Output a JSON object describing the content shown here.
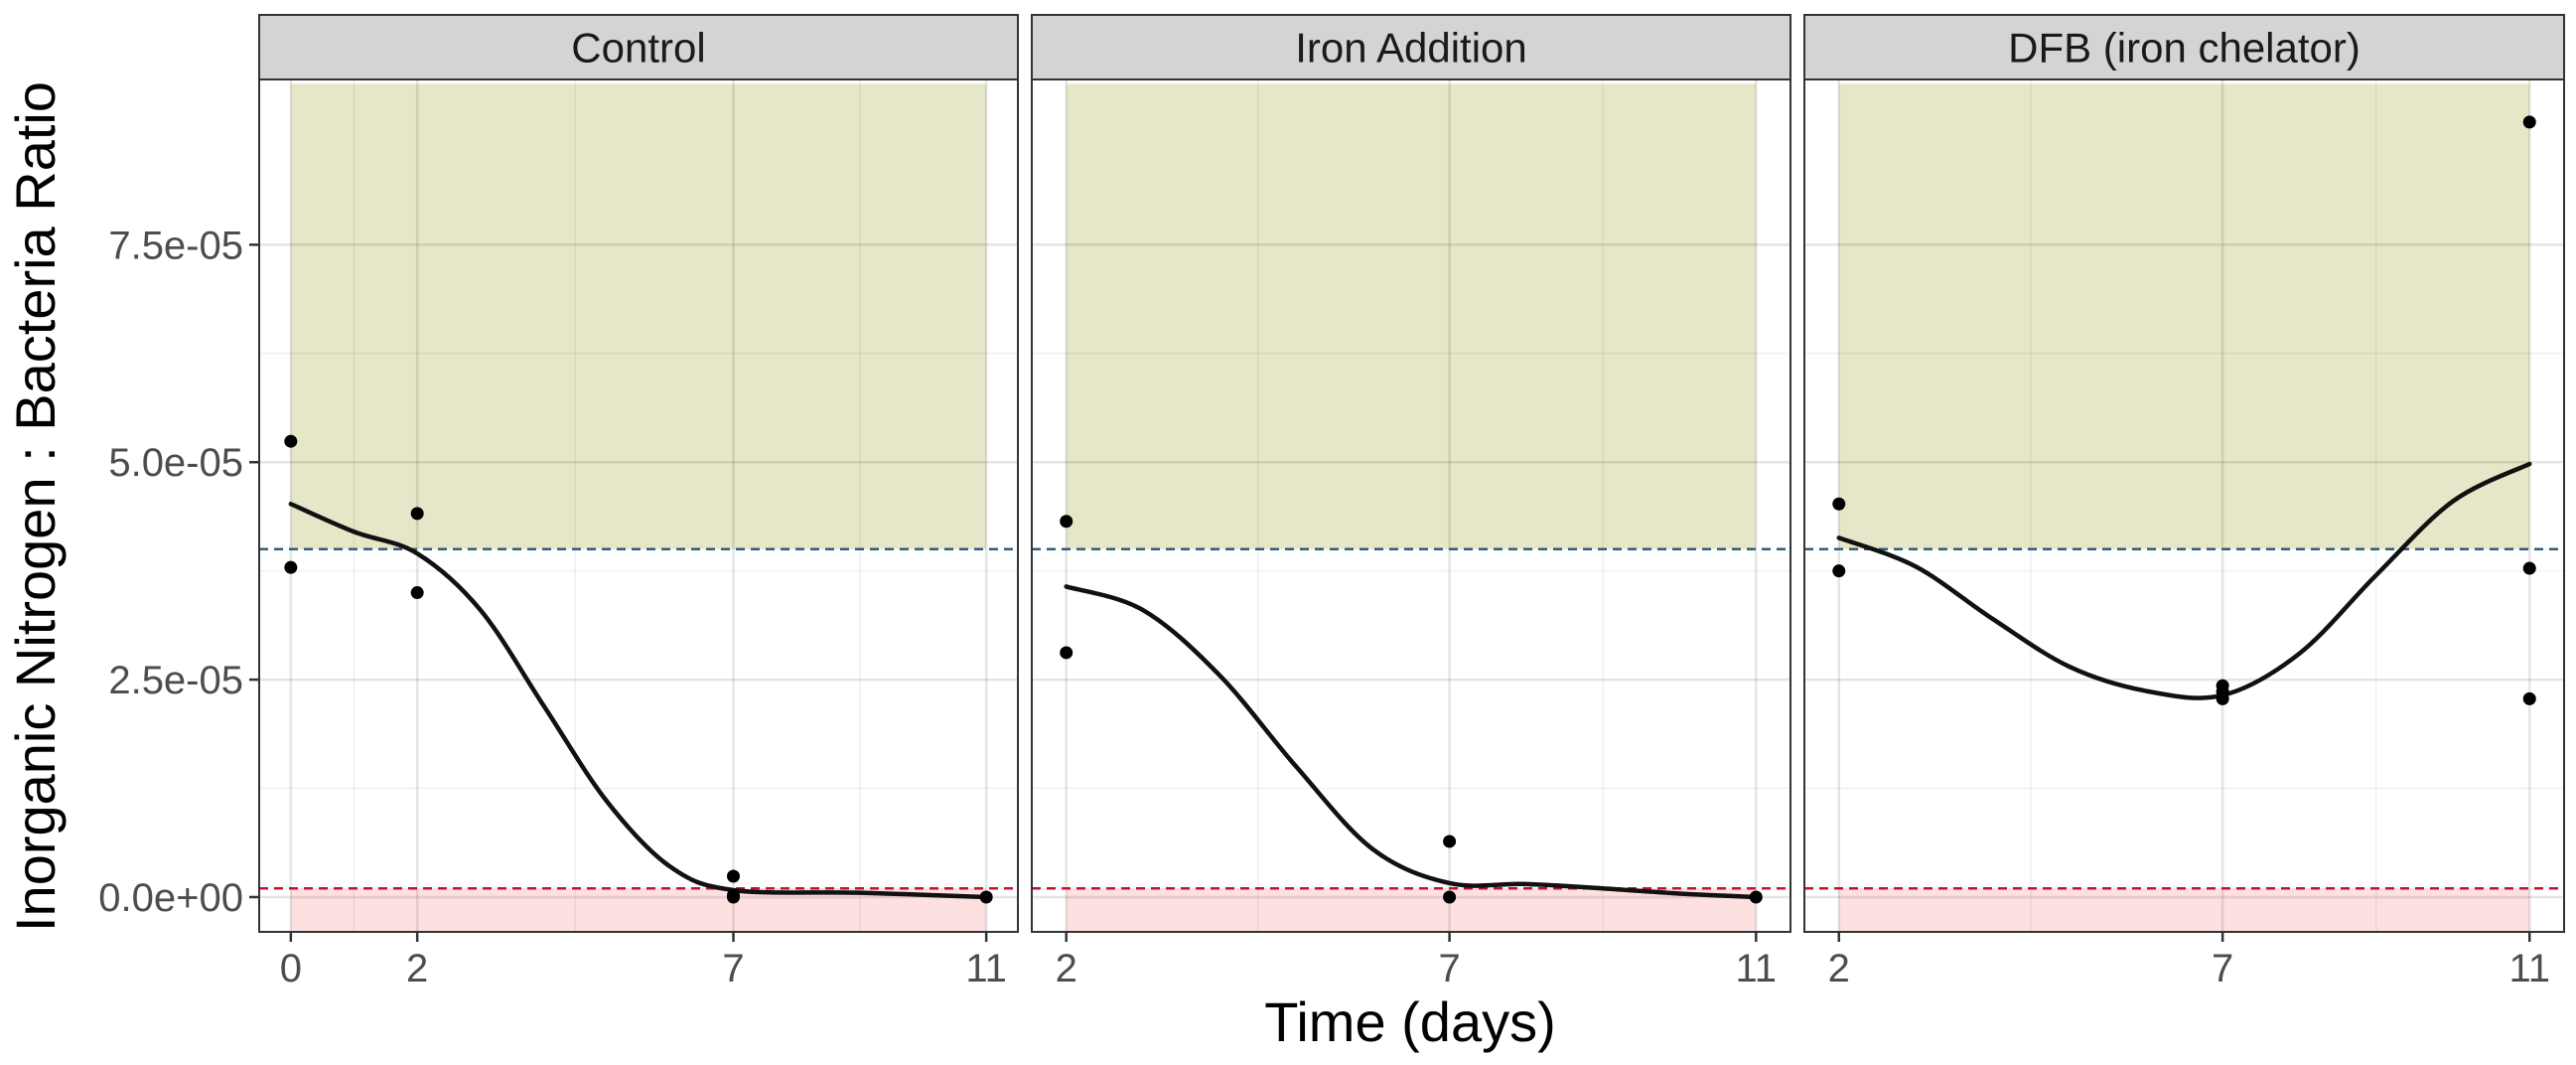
{
  "chart_data": {
    "type": "scatter",
    "xlabel": "Time (days)",
    "ylabel": "Inorganic Nitrogen : Bacteria Ratio",
    "ylim": [
      -4e-06,
      9.4e-05
    ],
    "y_ticks": [
      0,
      2.5e-05,
      5e-05,
      7.5e-05
    ],
    "y_tick_labels": [
      "0.0e+00",
      "2.5e-05",
      "5.0e-05",
      "7.5e-05"
    ],
    "reference_lines": {
      "upper": {
        "y": 4e-05,
        "color": "#2f5d7c",
        "style": "dashed"
      },
      "lower": {
        "y": 1e-06,
        "color": "#c8102e",
        "style": "dashed"
      }
    },
    "bands": {
      "upper": {
        "from": 4e-05,
        "to": 9.35e-05,
        "color": "#e6e6c8"
      },
      "lower": {
        "from": -4e-06,
        "to": 1e-06,
        "color": "#fde0e0"
      }
    },
    "grid": true,
    "colors": {
      "strip_fill": "#d4d4d4",
      "panel_border": "#333333",
      "points": "#000000",
      "smooth_line": "#111111"
    },
    "panels": [
      {
        "title": "Control",
        "xlim": [
          -0.5,
          11.5
        ],
        "x_ticks": [
          0,
          2,
          7,
          11
        ],
        "x_tick_labels": [
          "0",
          "2",
          "7",
          "11"
        ],
        "minor_x_ticks": [
          1,
          4.5,
          9
        ],
        "points": [
          {
            "x": 0,
            "y": 5.24e-05
          },
          {
            "x": 0,
            "y": 3.79e-05
          },
          {
            "x": 2,
            "y": 4.41e-05
          },
          {
            "x": 2,
            "y": 3.5e-05
          },
          {
            "x": 7,
            "y": 2.4e-06
          },
          {
            "x": 7,
            "y": 2e-07
          },
          {
            "x": 7,
            "y": 0.0
          },
          {
            "x": 11,
            "y": 0.0
          }
        ],
        "smooth": [
          {
            "x": 0,
            "y": 4.52e-05
          },
          {
            "x": 1,
            "y": 4.2e-05
          },
          {
            "x": 2,
            "y": 3.95e-05
          },
          {
            "x": 3,
            "y": 3.3e-05
          },
          {
            "x": 4,
            "y": 2.2e-05
          },
          {
            "x": 5,
            "y": 1.1e-05
          },
          {
            "x": 6,
            "y": 3.5e-06
          },
          {
            "x": 7,
            "y": 8e-07
          },
          {
            "x": 9,
            "y": 5e-07
          },
          {
            "x": 11,
            "y": 0.0
          }
        ]
      },
      {
        "title": "Iron Addition",
        "xlim": [
          1.55,
          11.45
        ],
        "x_ticks": [
          2,
          7,
          11
        ],
        "x_tick_labels": [
          "2",
          "7",
          "11"
        ],
        "minor_x_ticks": [
          4.5,
          9
        ],
        "points": [
          {
            "x": 2,
            "y": 4.32e-05
          },
          {
            "x": 2,
            "y": 2.81e-05
          },
          {
            "x": 7,
            "y": 6.4e-06
          },
          {
            "x": 7,
            "y": 0.0
          },
          {
            "x": 11,
            "y": 0.0
          }
        ],
        "smooth": [
          {
            "x": 2,
            "y": 3.57e-05
          },
          {
            "x": 3,
            "y": 3.3e-05
          },
          {
            "x": 4,
            "y": 2.55e-05
          },
          {
            "x": 5,
            "y": 1.5e-05
          },
          {
            "x": 6,
            "y": 5.5e-06
          },
          {
            "x": 7,
            "y": 1.6e-06
          },
          {
            "x": 8,
            "y": 1.5e-06
          },
          {
            "x": 9,
            "y": 1e-06
          },
          {
            "x": 10,
            "y": 4e-07
          },
          {
            "x": 11,
            "y": 0.0
          }
        ]
      },
      {
        "title": "DFB (iron chelator)",
        "xlim": [
          1.55,
          11.45
        ],
        "x_ticks": [
          2,
          7,
          11
        ],
        "x_tick_labels": [
          "2",
          "7",
          "11"
        ],
        "minor_x_ticks": [
          4.5,
          9
        ],
        "points": [
          {
            "x": 2,
            "y": 4.52e-05
          },
          {
            "x": 2,
            "y": 3.75e-05
          },
          {
            "x": 7,
            "y": 2.43e-05
          },
          {
            "x": 7,
            "y": 2.36e-05
          },
          {
            "x": 7,
            "y": 2.28e-05
          },
          {
            "x": 11,
            "y": 8.91e-05
          },
          {
            "x": 11,
            "y": 3.78e-05
          },
          {
            "x": 11,
            "y": 2.28e-05
          }
        ],
        "smooth": [
          {
            "x": 2,
            "y": 4.13e-05
          },
          {
            "x": 3,
            "y": 3.8e-05
          },
          {
            "x": 4,
            "y": 3.2e-05
          },
          {
            "x": 5,
            "y": 2.65e-05
          },
          {
            "x": 6,
            "y": 2.37e-05
          },
          {
            "x": 7,
            "y": 2.32e-05
          },
          {
            "x": 8,
            "y": 2.8e-05
          },
          {
            "x": 9,
            "y": 3.7e-05
          },
          {
            "x": 10,
            "y": 4.55e-05
          },
          {
            "x": 11,
            "y": 4.98e-05
          }
        ]
      }
    ]
  }
}
